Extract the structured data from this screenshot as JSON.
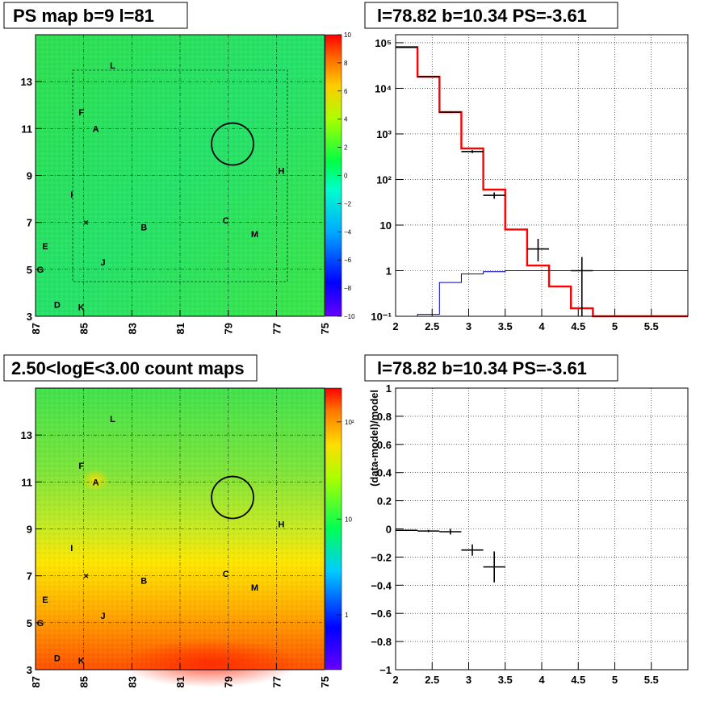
{
  "panels": {
    "ps_map_title": "PS map b=9 l=81",
    "spectrum_title": "l=78.82 b=10.34 PS=-3.61",
    "count_map_title": "2.50<logE<3.00 count maps",
    "residual_title": "l=78.82 b=10.34 PS=-3.61"
  },
  "chart_data": [
    {
      "type": "heatmap",
      "title": "PS map b=9 l=81",
      "x_ticks": [
        "87",
        "85",
        "83",
        "81",
        "79",
        "77",
        "75"
      ],
      "x_reversed": true,
      "xlim": [
        87,
        75
      ],
      "y_ticks": [
        "3",
        "5",
        "7",
        "9",
        "11",
        "13"
      ],
      "ylim": [
        3,
        15
      ],
      "grid": true,
      "colorbar": {
        "min": -10,
        "max": 10,
        "ticks": [
          "10",
          "8",
          "6",
          "4",
          "2",
          "0",
          "−2",
          "−4",
          "−6",
          "−8",
          "−10"
        ]
      },
      "markers": [
        {
          "label": "L",
          "l": 83.8,
          "b": 13.7
        },
        {
          "label": "F",
          "l": 85.1,
          "b": 11.7
        },
        {
          "label": "A",
          "l": 84.5,
          "b": 11.0
        },
        {
          "label": "H",
          "l": 76.8,
          "b": 9.2
        },
        {
          "label": "I",
          "l": 85.5,
          "b": 8.2
        },
        {
          "label": "B",
          "l": 82.5,
          "b": 6.8
        },
        {
          "label": "C",
          "l": 79.1,
          "b": 7.1
        },
        {
          "label": "M",
          "l": 77.9,
          "b": 6.5
        },
        {
          "label": "E",
          "l": 86.6,
          "b": 6.0
        },
        {
          "label": "J",
          "l": 84.2,
          "b": 5.3
        },
        {
          "label": "G",
          "l": 86.8,
          "b": 5.0
        },
        {
          "label": "D",
          "l": 86.1,
          "b": 3.5
        },
        {
          "label": "K",
          "l": 85.1,
          "b": 3.4
        }
      ],
      "circle": {
        "l": 78.82,
        "b": 10.34,
        "r": 0.6
      }
    },
    {
      "type": "line",
      "title": "l=78.82 b=10.34 PS=-3.61",
      "x_ticks": [
        "2",
        "2.5",
        "3",
        "3.5",
        "4",
        "4.5",
        "5",
        "5.5"
      ],
      "xlim": [
        2,
        6
      ],
      "y_log": true,
      "ylim": [
        0.1,
        150000
      ],
      "y_ticks": [
        "10⁻¹",
        "1",
        "10",
        "10²",
        "10³",
        "10⁴",
        "10⁵"
      ],
      "grid": true,
      "bin_edges": [
        2.0,
        2.3,
        2.6,
        2.9,
        3.2,
        3.5,
        3.8,
        4.1,
        4.4,
        4.7,
        5.0,
        5.3,
        5.6,
        6.0
      ],
      "series": [
        {
          "color": "#ff0000",
          "values": [
            80000,
            18000,
            3000,
            480,
            60,
            8,
            1.3,
            0.45,
            0.15,
            0.1,
            0.1,
            0.1,
            0.1
          ]
        },
        {
          "color": "#0000cc",
          "values": [
            0.1,
            0.11,
            0.55,
            0.85,
            0.95,
            1.0,
            1.0,
            1.0,
            1.0,
            1.0,
            1.0,
            1.0,
            1.0
          ]
        }
      ],
      "points": [
        {
          "x": 2.15,
          "y": 80000,
          "xerr": 0.15,
          "ylo": 79000,
          "yhi": 81000
        },
        {
          "x": 2.45,
          "y": 18000,
          "xerr": 0.15,
          "ylo": 17700,
          "yhi": 18300
        },
        {
          "x": 2.75,
          "y": 3000,
          "xerr": 0.15,
          "ylo": 2890,
          "yhi": 3110
        },
        {
          "x": 3.05,
          "y": 410,
          "xerr": 0.15,
          "ylo": 380,
          "yhi": 440
        },
        {
          "x": 3.35,
          "y": 45,
          "xerr": 0.15,
          "ylo": 38,
          "yhi": 52
        },
        {
          "x": 3.95,
          "y": 3,
          "xerr": 0.15,
          "ylo": 1.6,
          "yhi": 5.0
        },
        {
          "x": 4.55,
          "y": 1.0,
          "xerr": 0.15,
          "ylo": 0.1,
          "yhi": 2.0
        }
      ]
    },
    {
      "type": "heatmap",
      "title": "2.50<logE<3.00 count maps",
      "x_ticks": [
        "87",
        "85",
        "83",
        "81",
        "79",
        "77",
        "75"
      ],
      "x_reversed": true,
      "xlim": [
        87,
        75
      ],
      "y_ticks": [
        "3",
        "5",
        "7",
        "9",
        "11",
        "13"
      ],
      "ylim": [
        3,
        15
      ],
      "grid": true,
      "colorbar": {
        "log": true,
        "ticks": [
          "10²",
          "10",
          "1"
        ]
      },
      "markers": [
        {
          "label": "L",
          "l": 83.8,
          "b": 13.7
        },
        {
          "label": "F",
          "l": 85.1,
          "b": 11.7
        },
        {
          "label": "A",
          "l": 84.5,
          "b": 11.0
        },
        {
          "label": "H",
          "l": 76.8,
          "b": 9.2
        },
        {
          "label": "I",
          "l": 85.5,
          "b": 8.2
        },
        {
          "label": "B",
          "l": 82.5,
          "b": 6.8
        },
        {
          "label": "C",
          "l": 79.1,
          "b": 7.1
        },
        {
          "label": "M",
          "l": 77.9,
          "b": 6.5
        },
        {
          "label": "E",
          "l": 86.6,
          "b": 6.0
        },
        {
          "label": "J",
          "l": 84.2,
          "b": 5.3
        },
        {
          "label": "G",
          "l": 86.8,
          "b": 5.0
        },
        {
          "label": "D",
          "l": 86.1,
          "b": 3.5
        },
        {
          "label": "K",
          "l": 85.1,
          "b": 3.4
        }
      ],
      "circle": {
        "l": 78.82,
        "b": 10.34,
        "r": 0.6
      }
    },
    {
      "type": "scatter",
      "title": "l=78.82 b=10.34 PS=-3.61",
      "ylabel": "(data-model)/model",
      "x_ticks": [
        "2",
        "2.5",
        "3",
        "3.5",
        "4",
        "4.5",
        "5",
        "5.5"
      ],
      "xlim": [
        2,
        6
      ],
      "y_ticks": [
        "1",
        "0.8",
        "0.6",
        "0.4",
        "0.2",
        "0",
        "−0.2",
        "−0.4",
        "−0.6",
        "−0.8",
        "−1"
      ],
      "ylim": [
        -1,
        1
      ],
      "grid": true,
      "points": [
        {
          "x": 2.15,
          "y": -0.01,
          "xerr": 0.15,
          "yerr": 0.005
        },
        {
          "x": 2.45,
          "y": -0.015,
          "xerr": 0.15,
          "yerr": 0.008
        },
        {
          "x": 2.75,
          "y": -0.02,
          "xerr": 0.15,
          "yerr": 0.02
        },
        {
          "x": 3.05,
          "y": -0.15,
          "xerr": 0.15,
          "yerr": 0.04
        },
        {
          "x": 3.35,
          "y": -0.27,
          "xerr": 0.15,
          "yerr": 0.11
        }
      ]
    }
  ]
}
